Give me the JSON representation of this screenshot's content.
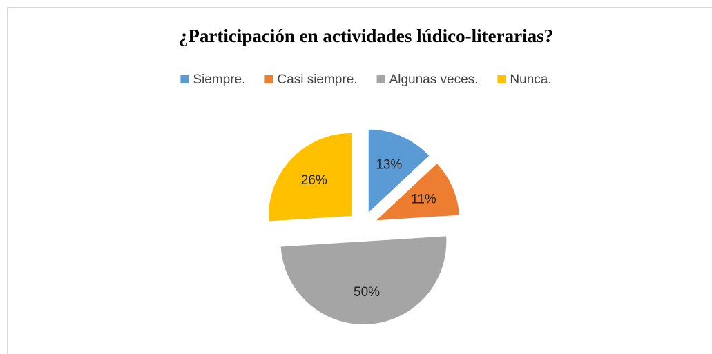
{
  "chart_data": {
    "type": "pie",
    "title": "¿Participación en actividades lúdico-literarias?",
    "categories": [
      "Siempre.",
      "Casi siempre.",
      "Algunas veces.",
      "Nunca."
    ],
    "values": [
      13,
      11,
      50,
      26
    ],
    "value_labels": [
      "13%",
      "11%",
      "50%",
      "26%"
    ],
    "colors": [
      "#5b9bd5",
      "#ed7d31",
      "#a5a5a5",
      "#ffc000"
    ],
    "legend": "top"
  }
}
